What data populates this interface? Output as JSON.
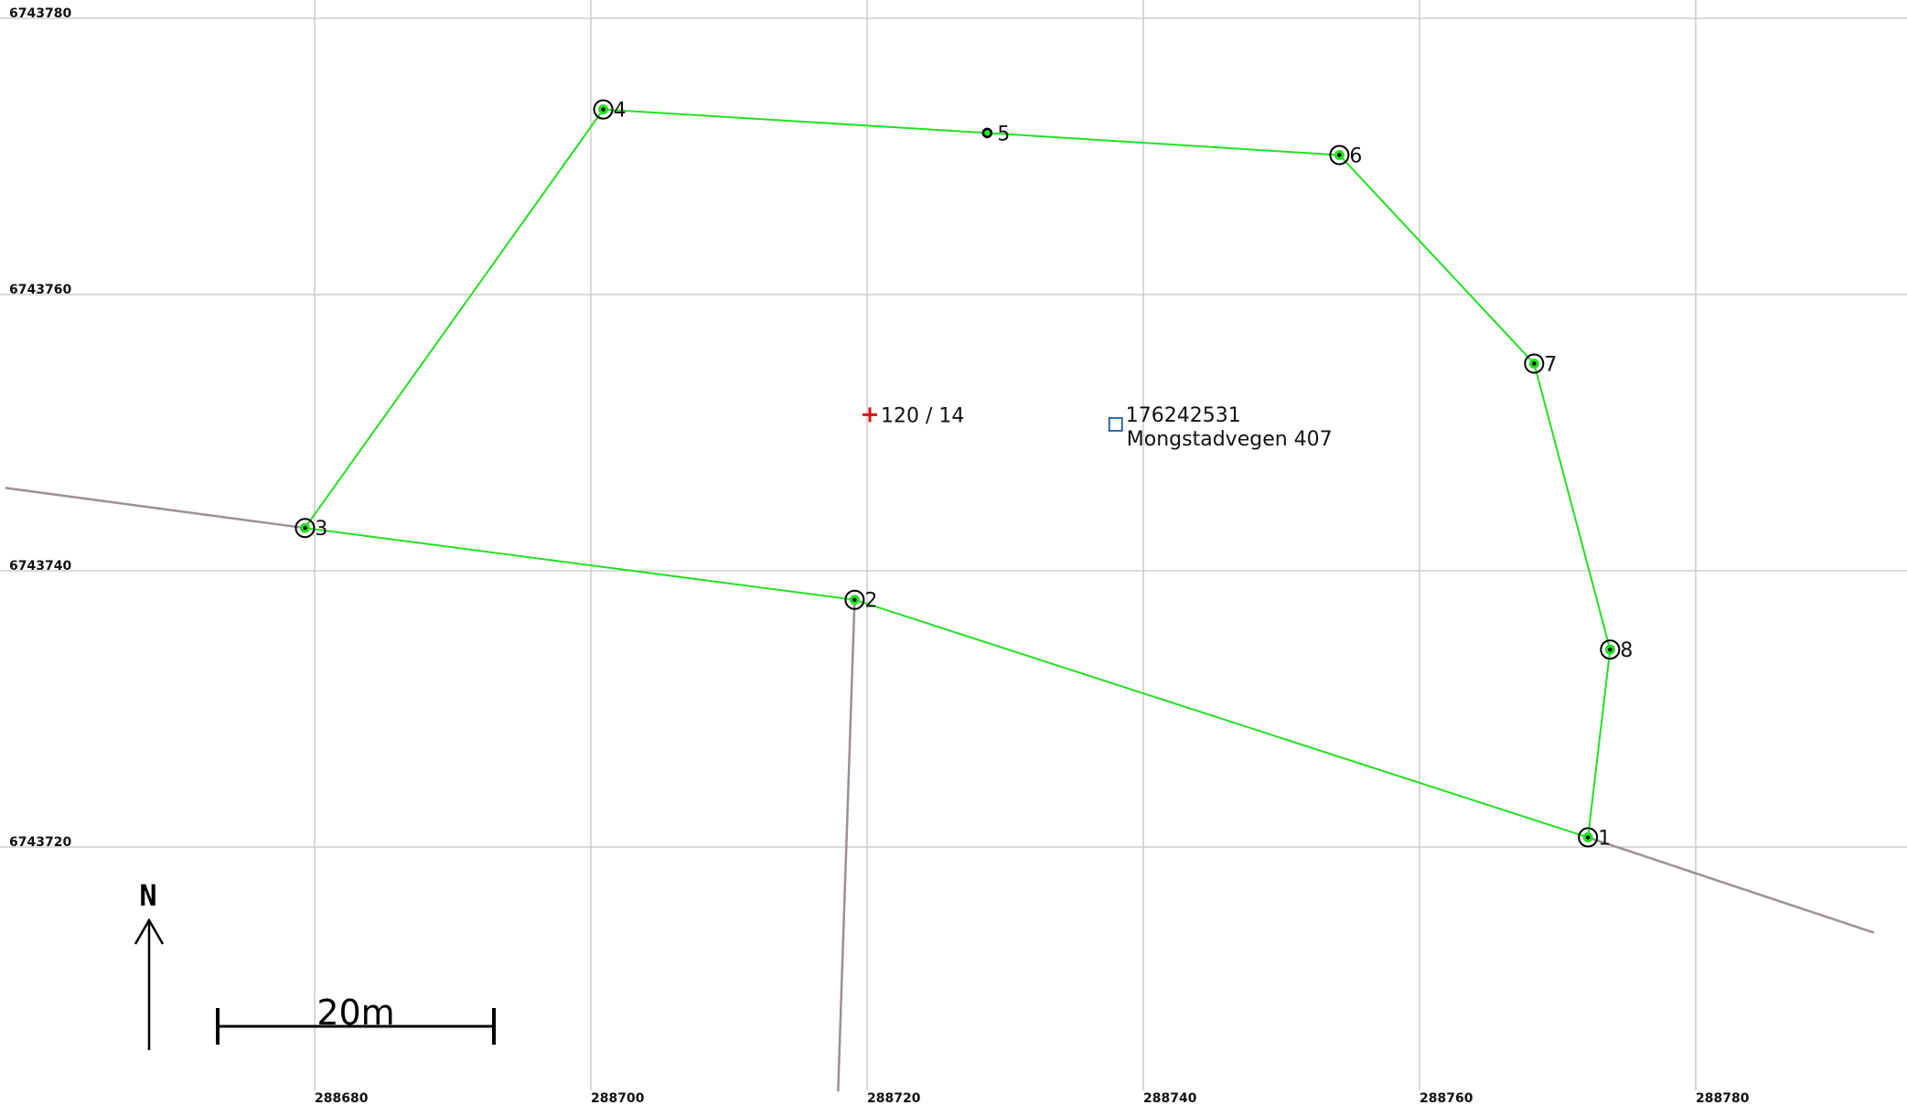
{
  "map": {
    "grid": {
      "x_ticks": [
        288680,
        288700,
        288720,
        288740,
        288760,
        288780
      ],
      "y_ticks": [
        6743780,
        6743760,
        6743740,
        6743720
      ]
    },
    "parcel": {
      "label": "120 / 14",
      "label_color": "#dd1111",
      "marker_icon": "plus-icon",
      "position": {
        "x": 288720.2,
        "y": 6743751.3
      }
    },
    "building": {
      "id_label": "176242531",
      "id_color": "#dd1111",
      "address_label": "Mongstadvegen 407",
      "address_color": "#1010bb",
      "marker_icon": "square-icon",
      "marker_color": "#1a5aaa",
      "position": {
        "x": 288738.0,
        "y": 6743750.6
      }
    },
    "boundary_color": "#22e022",
    "boundary_points": [
      {
        "label": "1",
        "x": 288772.2,
        "y": 6743720.7,
        "marker": "ring"
      },
      {
        "label": "2",
        "x": 288719.1,
        "y": 6743737.9,
        "marker": "ring"
      },
      {
        "label": "3",
        "x": 288679.3,
        "y": 6743743.1,
        "marker": "ring"
      },
      {
        "label": "4",
        "x": 288700.9,
        "y": 6743773.4,
        "marker": "ring"
      },
      {
        "label": "5",
        "x": 288728.7,
        "y": 6743771.7,
        "marker": "dot"
      },
      {
        "label": "6",
        "x": 288754.2,
        "y": 6743770.1,
        "marker": "ring"
      },
      {
        "label": "7",
        "x": 288768.3,
        "y": 6743755.0,
        "marker": "ring"
      },
      {
        "label": "8",
        "x": 288773.8,
        "y": 6743734.3,
        "marker": "ring"
      }
    ],
    "boundary_order": [
      "1",
      "2",
      "3",
      "4",
      "5",
      "6",
      "7",
      "8",
      "1"
    ],
    "road_color": "#9a8f9a",
    "roads": [
      [
        {
          "x": 288657.6,
          "y": 6743746.0
        },
        {
          "x": 288679.3,
          "y": 6743743.1
        }
      ],
      [
        {
          "x": 288772.2,
          "y": 6743720.7
        },
        {
          "x": 288792.9,
          "y": 6743713.8
        }
      ],
      [
        {
          "x": 288719.1,
          "y": 6743737.9
        },
        {
          "x": 288717.9,
          "y": 6743702.3
        }
      ]
    ],
    "north_arrow": {
      "label": "N"
    },
    "scale_bar": {
      "label": "20m",
      "length_m": 20
    }
  }
}
